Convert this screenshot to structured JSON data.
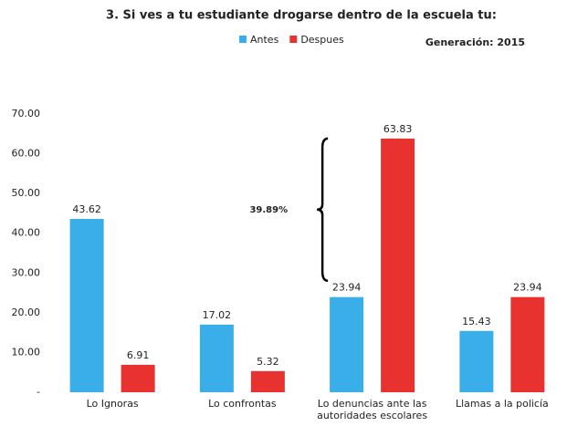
{
  "chart_data": {
    "type": "bar",
    "title": "3. Si ves a tu estudiante drogarse dentro de la escuela tu:",
    "subtitle": "Generación: 2015",
    "annotation": "39.89%",
    "categories": [
      "Lo Ignoras",
      "Lo confrontas",
      "Lo denuncias ante las autoridades escolares",
      "Llamas a la policía"
    ],
    "series": [
      {
        "name": "Antes",
        "color": "#3aaee8",
        "values": [
          43.62,
          17.02,
          23.94,
          15.43
        ]
      },
      {
        "name": "Despues",
        "color": "#e8322f",
        "values": [
          6.91,
          5.32,
          63.83,
          23.94
        ]
      }
    ],
    "ylim": [
      0,
      70
    ],
    "yticks": [
      {
        "value": 0,
        "label": "-"
      },
      {
        "value": 10,
        "label": "10.00"
      },
      {
        "value": 20,
        "label": "20.00"
      },
      {
        "value": 30,
        "label": "30.00"
      },
      {
        "value": 40,
        "label": "40.00"
      },
      {
        "value": 50,
        "label": "50.00"
      },
      {
        "value": 60,
        "label": "60.00"
      },
      {
        "value": 70,
        "label": "70.00"
      }
    ],
    "legend": "top",
    "grid": false
  }
}
